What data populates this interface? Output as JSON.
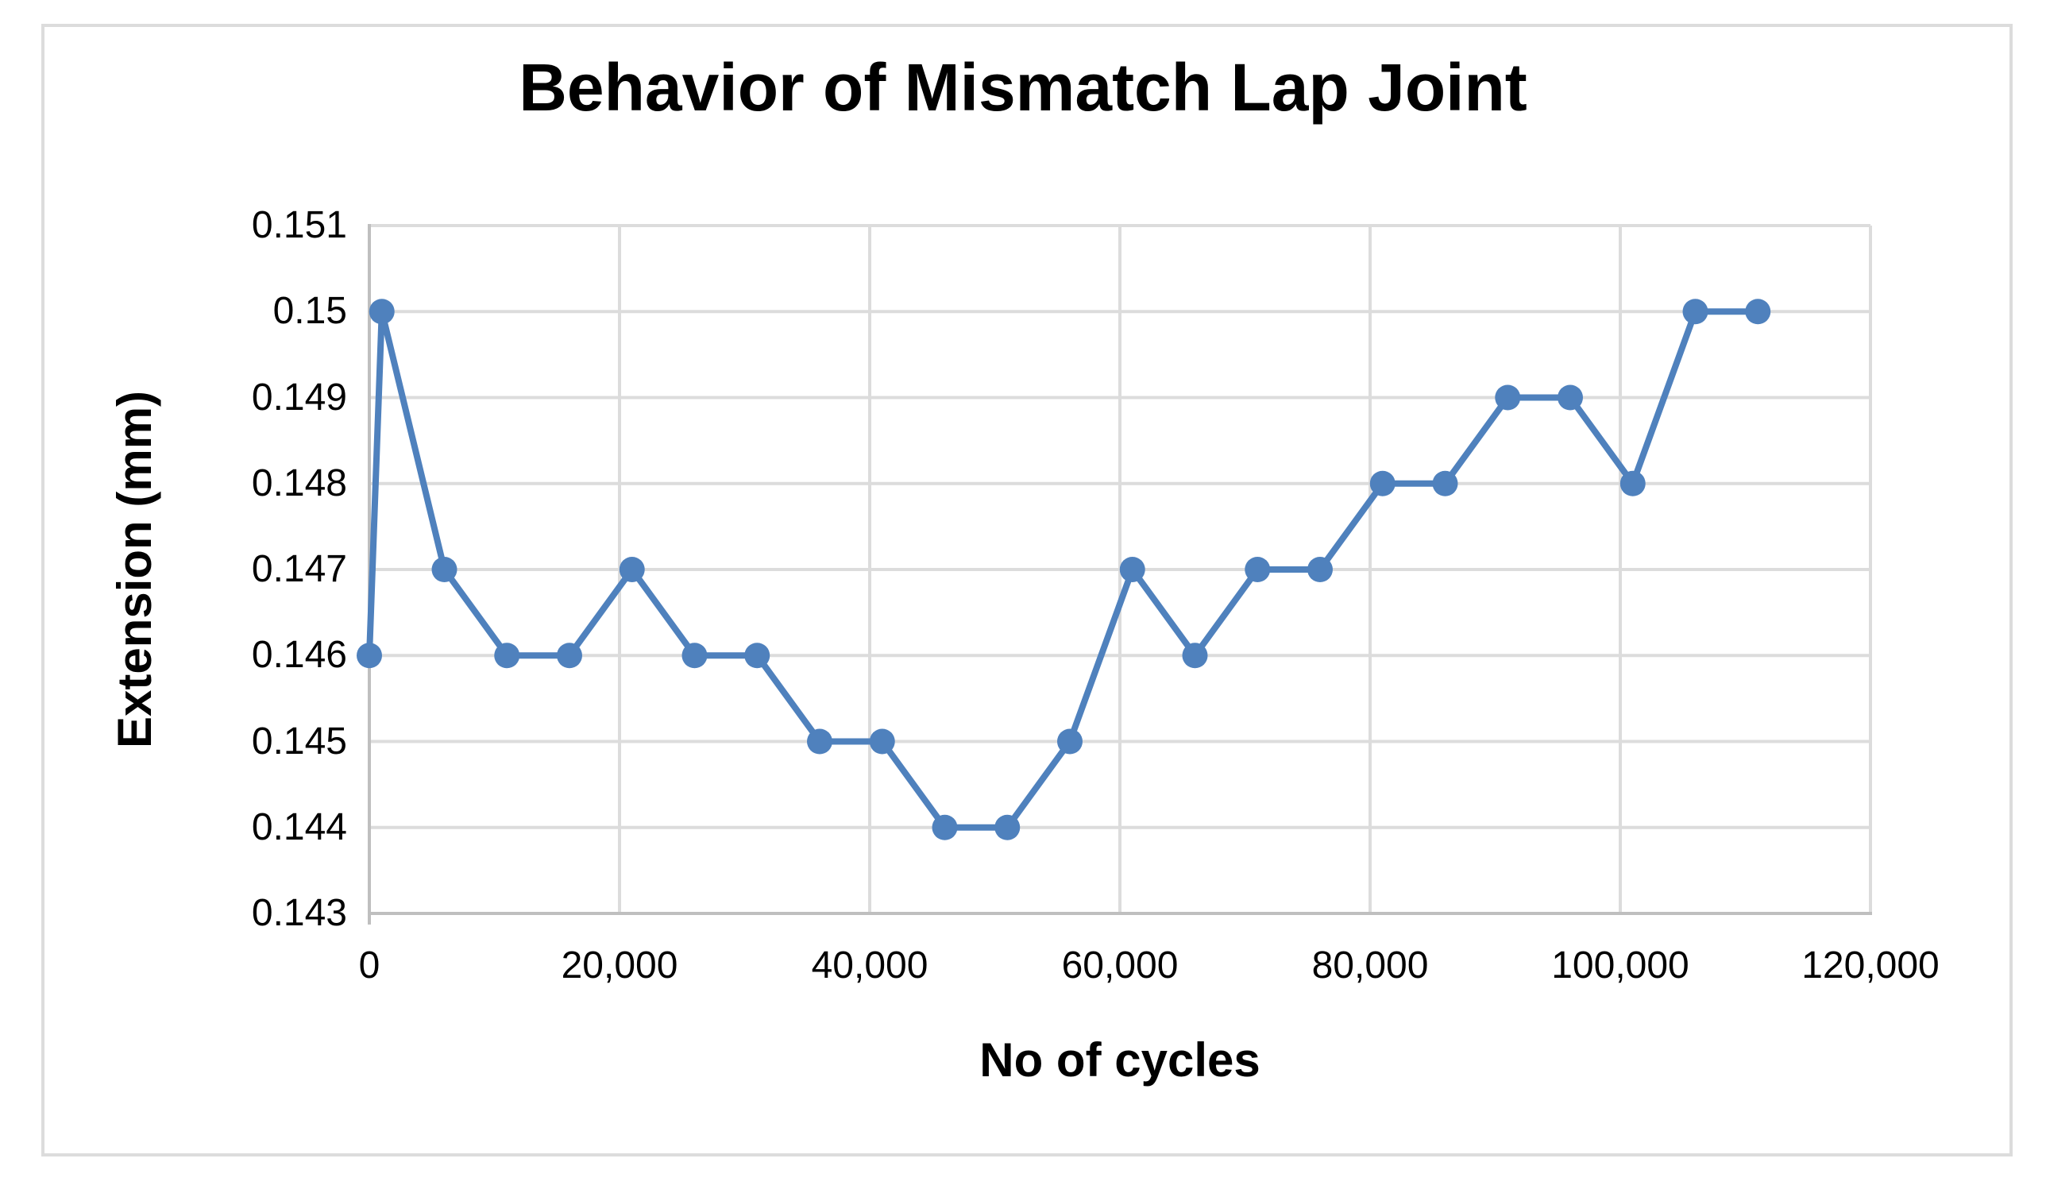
{
  "chart_data": {
    "type": "line",
    "title": "Behavior of Mismatch Lap Joint",
    "xlabel": "No of cycles",
    "ylabel": "Extension (mm)",
    "legend": "none",
    "grid": "both",
    "xlim": [
      0,
      120000
    ],
    "ylim": [
      0.143,
      0.151
    ],
    "x": [
      0,
      1000,
      6000,
      11000,
      16000,
      21000,
      26000,
      31000,
      36000,
      41000,
      46000,
      51000,
      56000,
      61000,
      66000,
      71000,
      76000,
      81000,
      86000,
      91000,
      96000,
      101000,
      106000,
      111000
    ],
    "y": [
      0.146,
      0.15,
      0.147,
      0.146,
      0.146,
      0.147,
      0.146,
      0.146,
      0.145,
      0.145,
      0.144,
      0.144,
      0.145,
      0.147,
      0.146,
      0.147,
      0.147,
      0.148,
      0.148,
      0.149,
      0.149,
      0.148,
      0.15,
      0.15
    ],
    "series": [
      {
        "name": "Extension (mm)",
        "marker": "circle"
      }
    ],
    "x_ticks": [
      {
        "value": 0,
        "label": "0"
      },
      {
        "value": 20000,
        "label": "20,000"
      },
      {
        "value": 40000,
        "label": "40,000"
      },
      {
        "value": 60000,
        "label": "60,000"
      },
      {
        "value": 80000,
        "label": "80,000"
      },
      {
        "value": 100000,
        "label": "100,000"
      },
      {
        "value": 120000,
        "label": "120,000"
      }
    ],
    "y_ticks": [
      {
        "value": 0.143,
        "label": "0.143"
      },
      {
        "value": 0.144,
        "label": "0.144"
      },
      {
        "value": 0.145,
        "label": "0.145"
      },
      {
        "value": 0.146,
        "label": "0.146"
      },
      {
        "value": 0.147,
        "label": "0.147"
      },
      {
        "value": 0.148,
        "label": "0.148"
      },
      {
        "value": 0.149,
        "label": "0.149"
      },
      {
        "value": 0.15,
        "label": "0.15"
      },
      {
        "value": 0.151,
        "label": "0.151"
      }
    ],
    "colors": {
      "series_line": "#4F81BD",
      "series_marker": "#4F81BD",
      "gridline": "#DCDCDC",
      "axis_line": "#BFBFBF",
      "frame_border": "#DCDCDC",
      "text": "#000000",
      "background": "#FFFFFF"
    }
  }
}
